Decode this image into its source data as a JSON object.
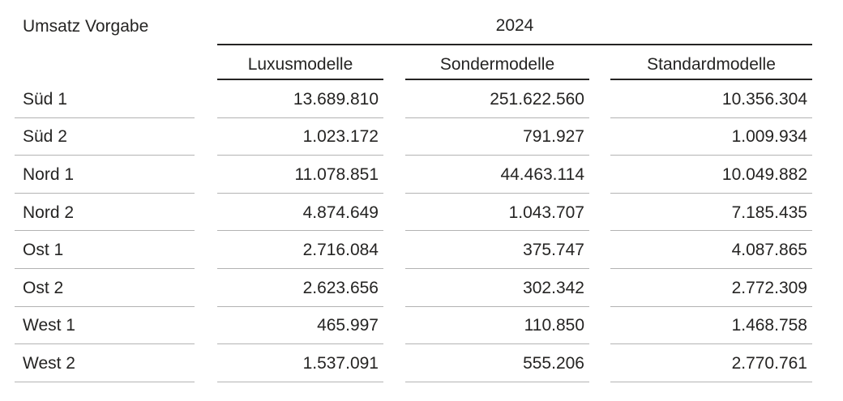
{
  "title": "Umsatz Vorgabe",
  "colors": {
    "text_dark": "#252423",
    "value_blue": "#2f54a3",
    "row_separator": "#b3b3b3",
    "header_rule": "#252423",
    "background": "#ffffff"
  },
  "chart_data": {
    "type": "table",
    "title": "Umsatz Vorgabe",
    "column_group_label": "2024",
    "columns": [
      "Luxusmodelle",
      "Sondermodelle",
      "Standardmodelle"
    ],
    "rows": [
      {
        "label": "Süd 1",
        "values": [
          "13.689.810",
          "251.622.560",
          "10.356.304"
        ]
      },
      {
        "label": "Süd 2",
        "values": [
          "1.023.172",
          "791.927",
          "1.009.934"
        ]
      },
      {
        "label": "Nord 1",
        "values": [
          "11.078.851",
          "44.463.114",
          "10.049.882"
        ]
      },
      {
        "label": "Nord 2",
        "values": [
          "4.874.649",
          "1.043.707",
          "7.185.435"
        ]
      },
      {
        "label": "Ost 1",
        "values": [
          "2.716.084",
          "375.747",
          "4.087.865"
        ]
      },
      {
        "label": "Ost 2",
        "values": [
          "2.623.656",
          "302.342",
          "2.772.309"
        ]
      },
      {
        "label": "West 1",
        "values": [
          "465.997",
          "110.850",
          "1.468.758"
        ]
      },
      {
        "label": "West 2",
        "values": [
          "1.537.091",
          "555.206",
          "2.770.761"
        ]
      }
    ]
  }
}
